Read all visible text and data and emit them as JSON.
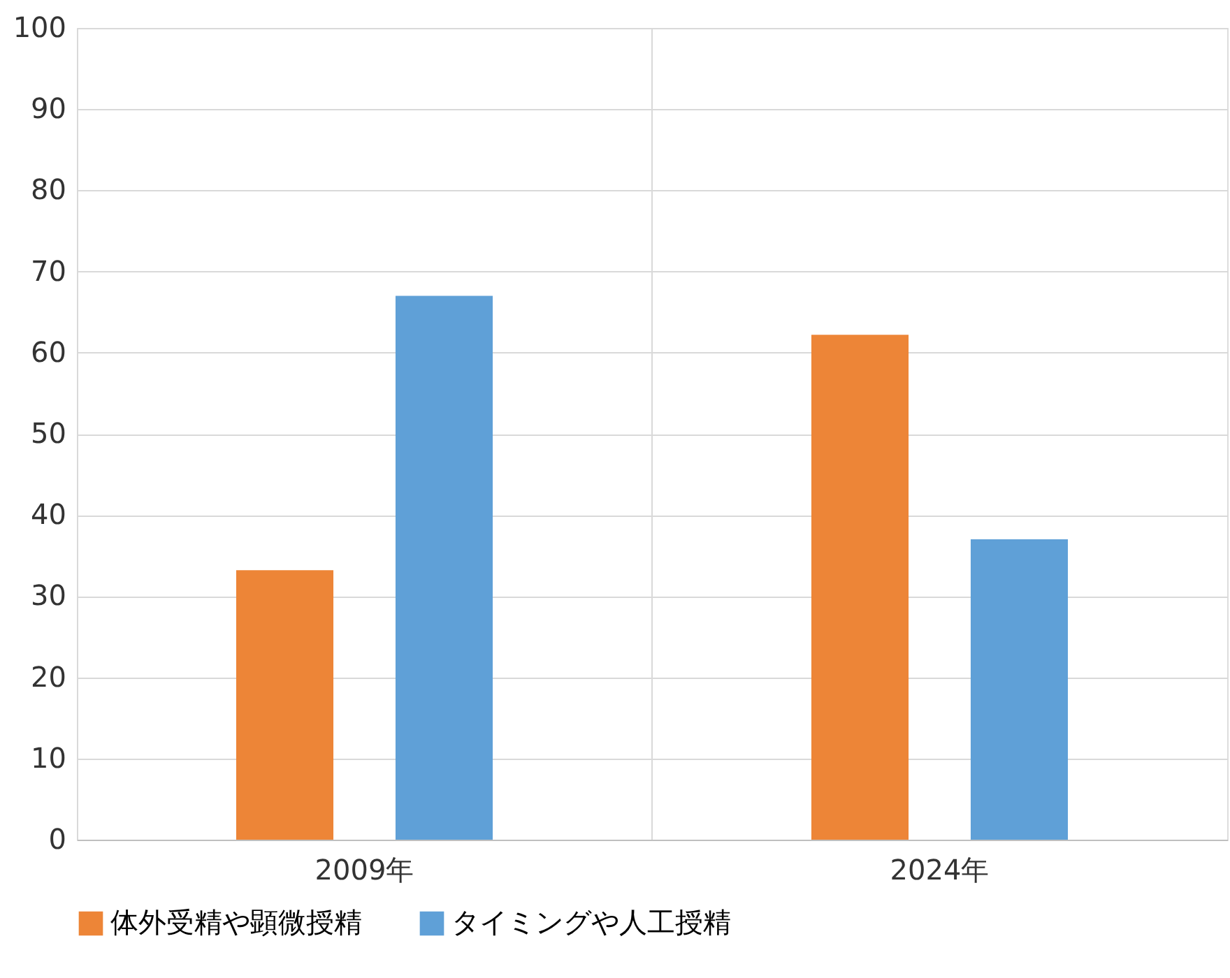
{
  "chart_data": {
    "type": "bar",
    "categories": [
      "2009年",
      "2024年"
    ],
    "series": [
      {
        "name": "体外受精や顕微授精",
        "color": "#ed8537",
        "values": [
          33.2,
          62.2
        ]
      },
      {
        "name": "タイミングや人工授精",
        "color": "#5fa0d7",
        "values": [
          67,
          37
        ]
      }
    ],
    "ylim": [
      0,
      100
    ],
    "yticks": [
      0,
      10,
      20,
      30,
      40,
      50,
      60,
      70,
      80,
      90,
      100
    ],
    "grid": true,
    "legend": "bottom"
  }
}
